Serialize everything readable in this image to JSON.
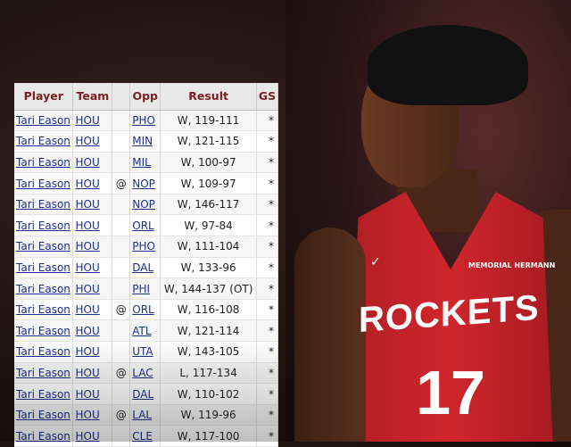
{
  "table": {
    "headers": [
      "Player",
      "Team",
      "",
      "Opp",
      "Result",
      "GS"
    ],
    "rows": [
      {
        "player": "Tari Eason",
        "team": "HOU",
        "loc": "",
        "opp": "PHO",
        "result": "W, 119-111",
        "gs": "*"
      },
      {
        "player": "Tari Eason",
        "team": "HOU",
        "loc": "",
        "opp": "MIN",
        "result": "W, 121-115",
        "gs": "*"
      },
      {
        "player": "Tari Eason",
        "team": "HOU",
        "loc": "",
        "opp": "MIL",
        "result": "W, 100-97",
        "gs": "*"
      },
      {
        "player": "Tari Eason",
        "team": "HOU",
        "loc": "@",
        "opp": "NOP",
        "result": "W, 109-97",
        "gs": "*"
      },
      {
        "player": "Tari Eason",
        "team": "HOU",
        "loc": "",
        "opp": "NOP",
        "result": "W, 146-117",
        "gs": "*"
      },
      {
        "player": "Tari Eason",
        "team": "HOU",
        "loc": "",
        "opp": "ORL",
        "result": "W, 97-84",
        "gs": "*"
      },
      {
        "player": "Tari Eason",
        "team": "HOU",
        "loc": "",
        "opp": "PHO",
        "result": "W, 111-104",
        "gs": "*"
      },
      {
        "player": "Tari Eason",
        "team": "HOU",
        "loc": "",
        "opp": "DAL",
        "result": "W, 133-96",
        "gs": "*"
      },
      {
        "player": "Tari Eason",
        "team": "HOU",
        "loc": "",
        "opp": "PHI",
        "result": "W, 144-137 (OT)",
        "gs": "*"
      },
      {
        "player": "Tari Eason",
        "team": "HOU",
        "loc": "@",
        "opp": "ORL",
        "result": "W, 116-108",
        "gs": "*"
      },
      {
        "player": "Tari Eason",
        "team": "HOU",
        "loc": "",
        "opp": "ATL",
        "result": "W, 121-114",
        "gs": "*"
      },
      {
        "player": "Tari Eason",
        "team": "HOU",
        "loc": "",
        "opp": "UTA",
        "result": "W, 143-105",
        "gs": "*"
      },
      {
        "player": "Tari Eason",
        "team": "HOU",
        "loc": "@",
        "opp": "LAC",
        "result": "L, 117-134",
        "gs": "*"
      },
      {
        "player": "Tari Eason",
        "team": "HOU",
        "loc": "",
        "opp": "DAL",
        "result": "W, 110-102",
        "gs": "*"
      },
      {
        "player": "Tari Eason",
        "team": "HOU",
        "loc": "@",
        "opp": "LAL",
        "result": "W, 119-96",
        "gs": "*"
      },
      {
        "player": "Tari Eason",
        "team": "HOU",
        "loc": "",
        "opp": "CLE",
        "result": "W, 117-100",
        "gs": "*"
      }
    ]
  },
  "photo": {
    "jersey_text": "ROCKETS",
    "jersey_number": "17",
    "sponsor": "MEMORIAL HERMANN",
    "jersey_color": "#c8232a"
  }
}
